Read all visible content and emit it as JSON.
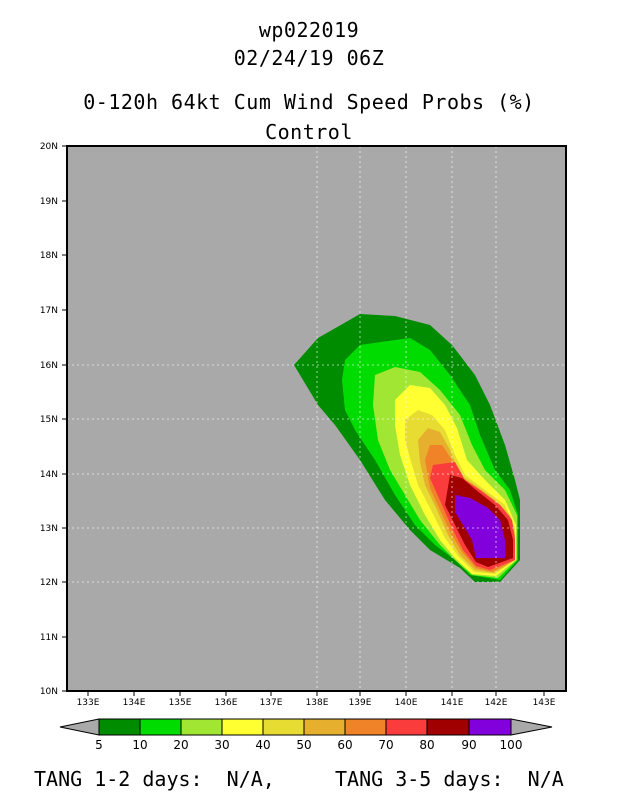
{
  "header": {
    "storm_id": "wp022019",
    "datetime": "02/24/19 06Z",
    "product": "0-120h 64kt Cum Wind Speed Probs (%)",
    "run": "Control"
  },
  "map": {
    "lat_labels": [
      "20N",
      "19N",
      "18N",
      "17N",
      "16N",
      "15N",
      "14N",
      "13N",
      "12N",
      "11N",
      "10N"
    ],
    "lon_labels": [
      "133E",
      "134E",
      "135E",
      "136E",
      "137E",
      "138E",
      "139E",
      "140E",
      "141E",
      "142E",
      "143E"
    ],
    "lat_range": [
      10,
      20
    ],
    "lon_range": [
      132.5,
      143.5
    ],
    "background_color": "#a9a9a9"
  },
  "colorbar": {
    "labels": [
      "5",
      "10",
      "20",
      "30",
      "40",
      "50",
      "60",
      "70",
      "80",
      "90",
      "100"
    ],
    "colors": [
      "#008c00",
      "#00dc00",
      "#a0e632",
      "#ffff32",
      "#e6dc32",
      "#e6af2d",
      "#f08228",
      "#fa3c3c",
      "#a00000",
      "#8200dc"
    ],
    "arrow_color": "#a9a9a9"
  },
  "footer": {
    "tang_1_2": "TANG 1-2 days:  N/A,",
    "tang_3_5": "TANG 3-5 days:  N/A"
  }
}
